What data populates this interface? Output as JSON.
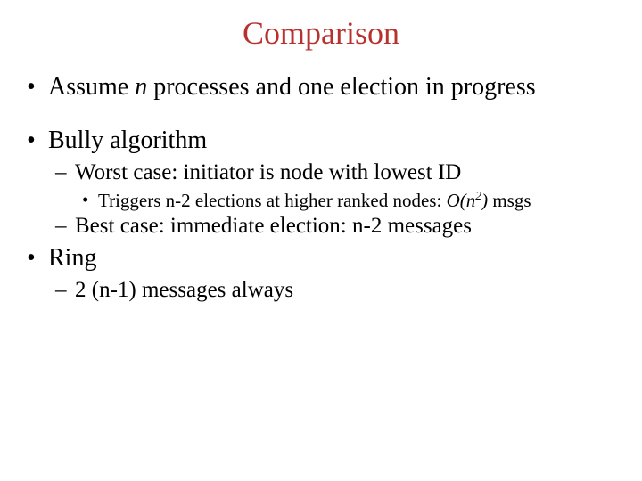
{
  "title": {
    "text": "Comparison",
    "color": "#b8312f",
    "fontsize": 36
  },
  "font": {
    "l1_size": 28,
    "l2_size": 25,
    "l3_size": 21,
    "color": "#000000"
  },
  "bullets": {
    "b1": {
      "prefix": "Assume ",
      "n": "n",
      "suffix": " processes and one election in progress"
    },
    "b2": {
      "label": "Bully algorithm",
      "sub1": "Worst case: initiator is node with lowest ID",
      "sub1a": {
        "prefix": "Triggers n-2 elections at higher ranked nodes: ",
        "bigO": "O(n",
        "exp": "2",
        "close": ")",
        "suffix": " msgs"
      },
      "sub2": "Best case: immediate election: n-2 messages"
    },
    "b3": {
      "label": "Ring",
      "sub1": "2 (n-1) messages always"
    }
  }
}
